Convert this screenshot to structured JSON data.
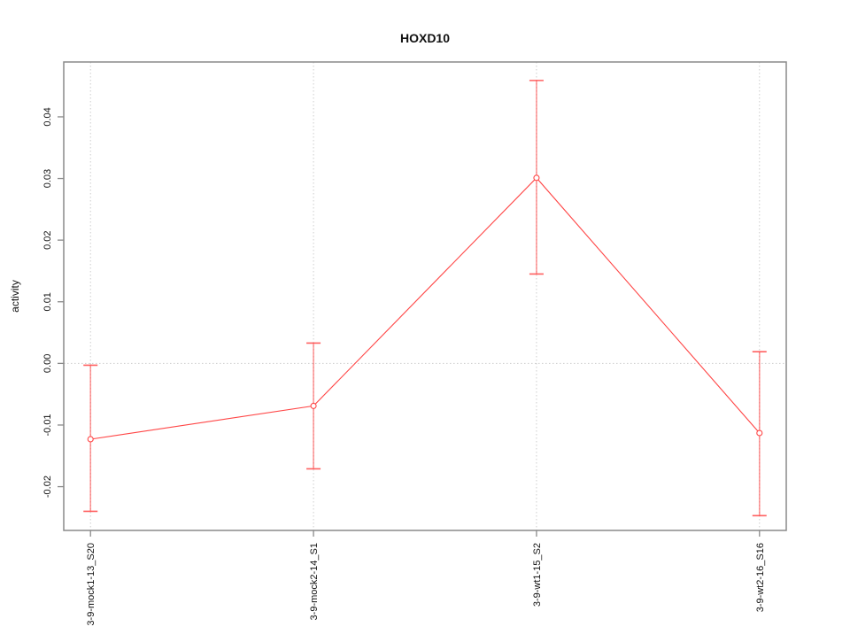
{
  "chart_data": {
    "type": "line",
    "title": "HOXD10",
    "xlabel": "",
    "ylabel": "activity",
    "categories": [
      "3-9-mock1-13_S20",
      "3-9-mock2-14_S1",
      "3-9-wt1-15_S2",
      "3-9-wt2-16_S16"
    ],
    "series": [
      {
        "name": "HOXD10 activity",
        "values": [
          -0.0123,
          -0.0069,
          0.0301,
          -0.0113
        ],
        "error_low": [
          -0.024,
          -0.0171,
          0.0145,
          -0.0247
        ],
        "error_high": [
          -0.0003,
          0.0033,
          0.0459,
          0.0019
        ]
      }
    ],
    "ylim": [
      -0.0271,
      0.0489
    ],
    "yticks": [
      -0.02,
      -0.01,
      0,
      0.01,
      0.02,
      0.03,
      0.04
    ],
    "ytick_labels": [
      "-0.02",
      "-0.01",
      "0.00",
      "0.01",
      "0.02",
      "0.03",
      "0.04"
    ],
    "grid": {
      "vertical_at_categories": true,
      "horizontal_zero_line": true,
      "style": "dotted"
    },
    "legend_position": "none",
    "marker": "open-circle",
    "error_bars": true,
    "colors": {
      "series": "#ff4545",
      "error_bar_stem": "rgba(255,69,69,0.55)",
      "error_bar_cap": "rgba(255,69,69,0.85)",
      "grid": "#cdcdcd",
      "axis_box": "#8a8a8a",
      "text": "#111111"
    }
  }
}
